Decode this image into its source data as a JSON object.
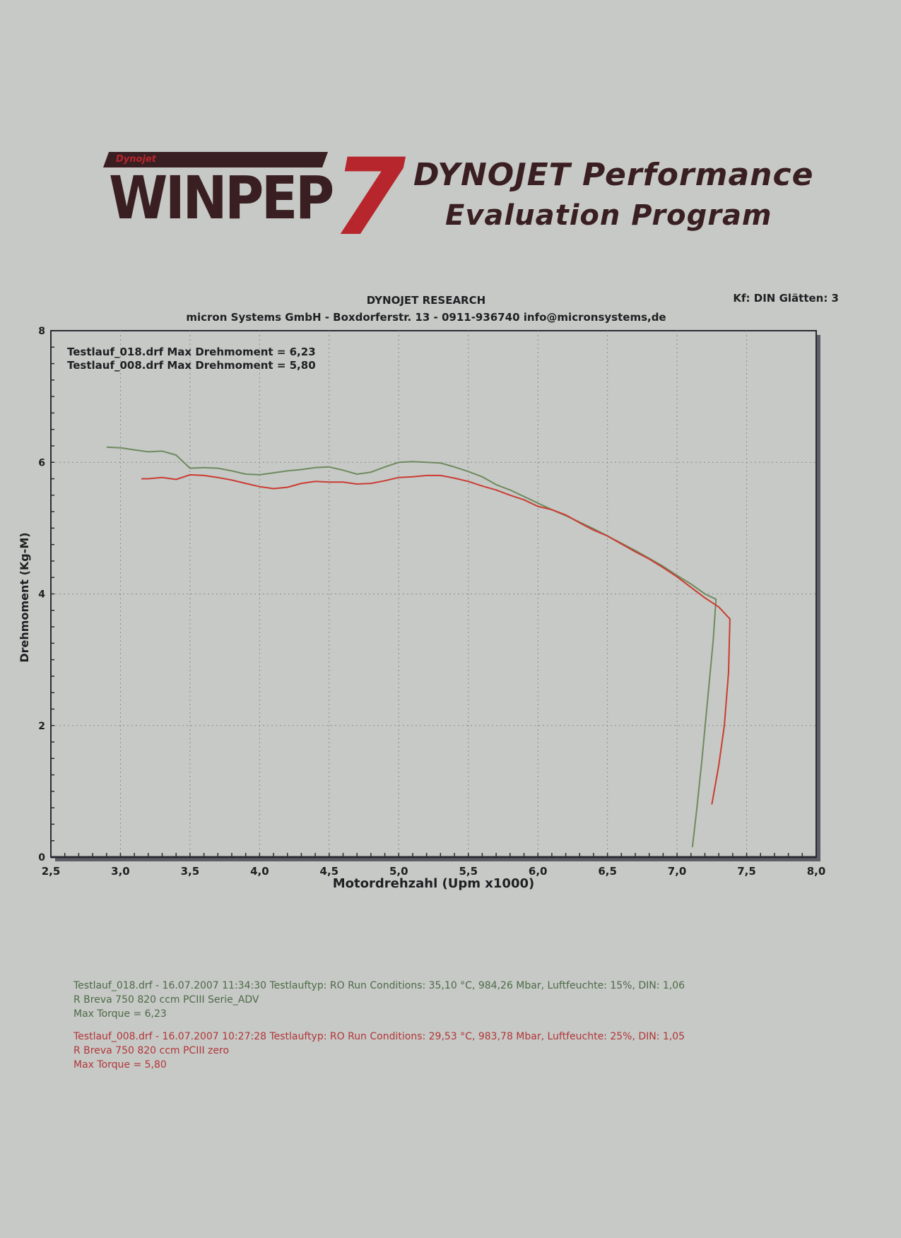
{
  "logo": {
    "small_text": "Dynojet",
    "main_text": "WINPEP",
    "numeral": "7",
    "tagline_1": "DYNOJET Performance",
    "tagline_2": "Evaluation Program"
  },
  "header": {
    "research": "DYNOJET RESEARCH",
    "company": "micron Systems GmbH - Boxdorferstr. 13 - 0911-936740   info@micronsystems,de",
    "settings": "Kf: DIN  Glätten: 3"
  },
  "colors": {
    "series_green": "#6f8a5f",
    "series_red": "#cc3b33",
    "frame": "#2b2b33",
    "grid": "#8c8e92"
  },
  "chart_data": {
    "type": "line",
    "xlabel": "Motordrehzahl (Upm x1000)",
    "ylabel": "Drehmoment (Kg-M)",
    "xlim": [
      2.5,
      8.0
    ],
    "ylim": [
      0,
      8
    ],
    "x_ticks": [
      "2,5",
      "3,0",
      "3,5",
      "4,0",
      "4,5",
      "5,0",
      "5,5",
      "6,0",
      "6,5",
      "7,0",
      "7,5",
      "8,0"
    ],
    "y_ticks": [
      "0",
      "2",
      "4",
      "6",
      "8"
    ],
    "grid": true,
    "legend_position": "top-left",
    "legend": [
      "Testlauf_018.drf Max Drehmoment = 6,23",
      "Testlauf_008.drf Max Drehmoment = 5,80"
    ],
    "series": [
      {
        "name": "Testlauf_018.drf",
        "color": "#6f8a5f",
        "points": [
          [
            2.9,
            6.23
          ],
          [
            3.0,
            6.22
          ],
          [
            3.1,
            6.19
          ],
          [
            3.2,
            6.16
          ],
          [
            3.3,
            6.17
          ],
          [
            3.4,
            6.11
          ],
          [
            3.5,
            5.91
          ],
          [
            3.6,
            5.92
          ],
          [
            3.7,
            5.91
          ],
          [
            3.8,
            5.87
          ],
          [
            3.9,
            5.82
          ],
          [
            4.0,
            5.81
          ],
          [
            4.1,
            5.84
          ],
          [
            4.2,
            5.87
          ],
          [
            4.3,
            5.89
          ],
          [
            4.4,
            5.92
          ],
          [
            4.5,
            5.93
          ],
          [
            4.6,
            5.88
          ],
          [
            4.7,
            5.82
          ],
          [
            4.8,
            5.85
          ],
          [
            4.9,
            5.93
          ],
          [
            5.0,
            6.0
          ],
          [
            5.1,
            6.01
          ],
          [
            5.2,
            6.0
          ],
          [
            5.3,
            5.99
          ],
          [
            5.4,
            5.93
          ],
          [
            5.5,
            5.86
          ],
          [
            5.6,
            5.78
          ],
          [
            5.7,
            5.66
          ],
          [
            5.8,
            5.58
          ],
          [
            5.9,
            5.48
          ],
          [
            6.0,
            5.38
          ],
          [
            6.1,
            5.28
          ],
          [
            6.2,
            5.19
          ],
          [
            6.3,
            5.09
          ],
          [
            6.4,
            4.99
          ],
          [
            6.5,
            4.88
          ],
          [
            6.6,
            4.77
          ],
          [
            6.7,
            4.66
          ],
          [
            6.8,
            4.54
          ],
          [
            6.9,
            4.42
          ],
          [
            7.0,
            4.28
          ],
          [
            7.1,
            4.15
          ],
          [
            7.2,
            4.0
          ],
          [
            7.28,
            3.92
          ],
          [
            7.26,
            3.3
          ],
          [
            7.22,
            2.4
          ],
          [
            7.18,
            1.5
          ],
          [
            7.14,
            0.7
          ],
          [
            7.11,
            0.15
          ]
        ]
      },
      {
        "name": "Testlauf_008.drf",
        "color": "#cc3b33",
        "points": [
          [
            3.15,
            5.75
          ],
          [
            3.2,
            5.75
          ],
          [
            3.3,
            5.77
          ],
          [
            3.4,
            5.74
          ],
          [
            3.5,
            5.81
          ],
          [
            3.6,
            5.8
          ],
          [
            3.7,
            5.77
          ],
          [
            3.8,
            5.73
          ],
          [
            3.9,
            5.68
          ],
          [
            4.0,
            5.63
          ],
          [
            4.1,
            5.6
          ],
          [
            4.2,
            5.62
          ],
          [
            4.3,
            5.68
          ],
          [
            4.4,
            5.71
          ],
          [
            4.5,
            5.7
          ],
          [
            4.6,
            5.7
          ],
          [
            4.7,
            5.67
          ],
          [
            4.8,
            5.68
          ],
          [
            4.9,
            5.72
          ],
          [
            5.0,
            5.77
          ],
          [
            5.1,
            5.78
          ],
          [
            5.2,
            5.8
          ],
          [
            5.3,
            5.8
          ],
          [
            5.4,
            5.76
          ],
          [
            5.5,
            5.71
          ],
          [
            5.6,
            5.64
          ],
          [
            5.7,
            5.58
          ],
          [
            5.8,
            5.5
          ],
          [
            5.9,
            5.43
          ],
          [
            6.0,
            5.33
          ],
          [
            6.1,
            5.28
          ],
          [
            6.2,
            5.2
          ],
          [
            6.3,
            5.08
          ],
          [
            6.4,
            4.97
          ],
          [
            6.5,
            4.88
          ],
          [
            6.6,
            4.76
          ],
          [
            6.7,
            4.64
          ],
          [
            6.8,
            4.53
          ],
          [
            6.9,
            4.4
          ],
          [
            7.0,
            4.26
          ],
          [
            7.1,
            4.1
          ],
          [
            7.2,
            3.94
          ],
          [
            7.3,
            3.8
          ],
          [
            7.38,
            3.62
          ],
          [
            7.37,
            2.8
          ],
          [
            7.34,
            2.0
          ],
          [
            7.3,
            1.4
          ],
          [
            7.25,
            0.8
          ]
        ]
      }
    ]
  },
  "runs": [
    {
      "line1": "Testlauf_018.drf - 16.07.2007 11:34:30  Testlauftyp: RO  Run Conditions: 35,10 °C, 984,26 Mbar,  Luftfeuchte: 15%, DIN: 1,06",
      "line2": "R Breva 750 820 ccm PCIII Serie_ADV",
      "line3": "Max Torque = 6,23"
    },
    {
      "line1": "Testlauf_008.drf - 16.07.2007 10:27:28  Testlauftyp: RO  Run Conditions: 29,53 °C, 983,78 Mbar,  Luftfeuchte: 25%, DIN: 1,05",
      "line2": "R Breva 750 820 ccm PCIII zero",
      "line3": "Max Torque = 5,80"
    }
  ]
}
